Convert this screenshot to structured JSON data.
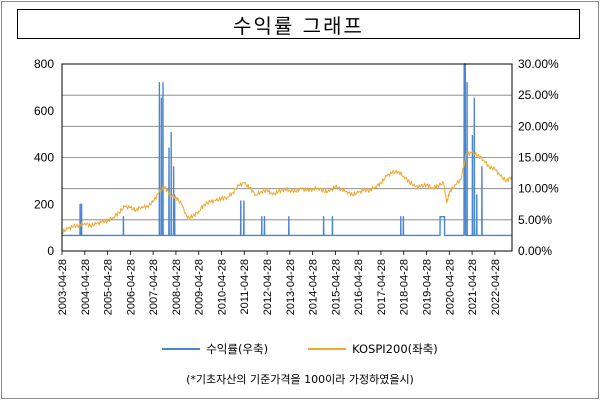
{
  "title": "수익률 그래프",
  "footnote": "(*기초자산의 기준가격을 100이라 가정하였을시)",
  "colors": {
    "kospi": "#F0A830",
    "returns": "#4A86D0",
    "grid": "#7F7F7F",
    "axis": "#000000"
  },
  "chart_data": {
    "type": "line",
    "title": "수익률 그래프",
    "left_axis": {
      "min": 0,
      "max": 800,
      "ticks": [
        "0",
        "200",
        "400",
        "600",
        "800"
      ],
      "series": "KOSPI200(좌축)"
    },
    "right_axis": {
      "min": 0,
      "max": 30,
      "ticks": [
        "0.00%",
        "5.00%",
        "10.00%",
        "15.00%",
        "20.00%",
        "25.00%",
        "30.00%"
      ],
      "series": "수익률(우축)"
    },
    "x_ticks": [
      "2003-04-28",
      "2004-04-28",
      "2005-04-28",
      "2006-04-28",
      "2007-04-28",
      "2008-04-28",
      "2009-04-28",
      "2010-04-28",
      "2011-04-28",
      "2012-04-28",
      "2013-04-28",
      "2014-04-28",
      "2015-04-28",
      "2016-04-28",
      "2017-04-28",
      "2018-04-28",
      "2019-04-28",
      "2020-04-28",
      "2021-04-28",
      "2022-04-28"
    ],
    "grid": true,
    "legend_position": "bottom",
    "series": [
      {
        "name": "KOSPI200(좌축)",
        "axis": "left",
        "values": [
          [
            "2003-04-28",
            80
          ],
          [
            "2003-07-28",
            95
          ],
          [
            "2003-10-28",
            105
          ],
          [
            "2004-01-28",
            110
          ],
          [
            "2004-04-28",
            120
          ],
          [
            "2004-07-28",
            108
          ],
          [
            "2004-10-28",
            115
          ],
          [
            "2005-01-28",
            125
          ],
          [
            "2005-04-28",
            128
          ],
          [
            "2005-07-28",
            145
          ],
          [
            "2005-10-28",
            165
          ],
          [
            "2006-01-28",
            190
          ],
          [
            "2006-04-28",
            185
          ],
          [
            "2006-07-28",
            175
          ],
          [
            "2006-10-28",
            190
          ],
          [
            "2007-01-28",
            190
          ],
          [
            "2007-04-28",
            210
          ],
          [
            "2007-07-28",
            250
          ],
          [
            "2007-10-28",
            275
          ],
          [
            "2008-01-28",
            240
          ],
          [
            "2008-04-28",
            230
          ],
          [
            "2008-07-28",
            200
          ],
          [
            "2008-10-28",
            140
          ],
          [
            "2009-01-28",
            150
          ],
          [
            "2009-04-28",
            170
          ],
          [
            "2009-07-28",
            200
          ],
          [
            "2009-10-28",
            210
          ],
          [
            "2010-01-28",
            215
          ],
          [
            "2010-04-28",
            225
          ],
          [
            "2010-07-28",
            230
          ],
          [
            "2010-10-28",
            250
          ],
          [
            "2011-01-28",
            280
          ],
          [
            "2011-04-28",
            290
          ],
          [
            "2011-07-28",
            270
          ],
          [
            "2011-10-28",
            240
          ],
          [
            "2012-01-28",
            255
          ],
          [
            "2012-04-28",
            260
          ],
          [
            "2012-07-28",
            240
          ],
          [
            "2012-10-28",
            255
          ],
          [
            "2013-01-28",
            265
          ],
          [
            "2013-04-28",
            260
          ],
          [
            "2013-07-28",
            255
          ],
          [
            "2013-10-28",
            265
          ],
          [
            "2014-01-28",
            260
          ],
          [
            "2014-04-28",
            265
          ],
          [
            "2014-07-28",
            270
          ],
          [
            "2014-10-28",
            255
          ],
          [
            "2015-01-28",
            255
          ],
          [
            "2015-04-28",
            275
          ],
          [
            "2015-07-28",
            265
          ],
          [
            "2015-10-28",
            255
          ],
          [
            "2016-01-28",
            240
          ],
          [
            "2016-04-28",
            250
          ],
          [
            "2016-07-28",
            260
          ],
          [
            "2016-10-28",
            260
          ],
          [
            "2017-01-28",
            275
          ],
          [
            "2017-04-28",
            290
          ],
          [
            "2017-07-28",
            320
          ],
          [
            "2017-10-28",
            335
          ],
          [
            "2018-01-28",
            340
          ],
          [
            "2018-04-28",
            320
          ],
          [
            "2018-07-28",
            295
          ],
          [
            "2018-10-28",
            275
          ],
          [
            "2019-01-28",
            275
          ],
          [
            "2019-04-28",
            285
          ],
          [
            "2019-07-28",
            270
          ],
          [
            "2019-10-28",
            280
          ],
          [
            "2020-01-28",
            290
          ],
          [
            "2020-03-20",
            205
          ],
          [
            "2020-04-28",
            250
          ],
          [
            "2020-07-28",
            285
          ],
          [
            "2020-10-28",
            305
          ],
          [
            "2021-01-28",
            415
          ],
          [
            "2021-04-28",
            420
          ],
          [
            "2021-07-28",
            410
          ],
          [
            "2021-10-28",
            390
          ],
          [
            "2022-01-28",
            360
          ],
          [
            "2022-04-28",
            350
          ],
          [
            "2022-07-28",
            320
          ],
          [
            "2022-10-28",
            300
          ],
          [
            "2023-01-28",
            320
          ]
        ]
      },
      {
        "name": "수익률(우축)",
        "axis": "right",
        "values": [
          [
            "2003-04-28",
            2.5
          ],
          [
            "2004-02-10",
            2.5
          ],
          [
            "2004-02-12",
            7.5
          ],
          [
            "2004-02-14",
            2.5
          ],
          [
            "2004-03-05",
            2.5
          ],
          [
            "2004-03-07",
            7.5
          ],
          [
            "2004-03-09",
            2.5
          ],
          [
            "2006-01-05",
            2.5
          ],
          [
            "2006-01-07",
            5.5
          ],
          [
            "2006-01-09",
            2.5
          ],
          [
            "2007-08-05",
            2.5
          ],
          [
            "2007-08-07",
            27
          ],
          [
            "2007-08-09",
            2.5
          ],
          [
            "2007-09-05",
            2.5
          ],
          [
            "2007-09-07",
            24.5
          ],
          [
            "2007-09-09",
            2.5
          ],
          [
            "2007-10-01",
            2.5
          ],
          [
            "2007-10-03",
            27
          ],
          [
            "2007-10-05",
            2.5
          ],
          [
            "2008-01-05",
            2.5
          ],
          [
            "2008-01-07",
            16.5
          ],
          [
            "2008-01-10",
            2.5
          ],
          [
            "2008-02-10",
            2.5
          ],
          [
            "2008-02-12",
            19
          ],
          [
            "2008-02-14",
            2.5
          ],
          [
            "2008-03-20",
            2.5
          ],
          [
            "2008-03-22",
            13.5
          ],
          [
            "2008-03-24",
            2.5
          ],
          [
            "2008-04-05",
            2.5
          ],
          [
            "2008-04-07",
            9
          ],
          [
            "2008-04-09",
            2.5
          ],
          [
            "2011-03-01",
            2.5
          ],
          [
            "2011-03-03",
            8
          ],
          [
            "2011-03-05",
            2.5
          ],
          [
            "2011-04-20",
            2.5
          ],
          [
            "2011-04-22",
            8
          ],
          [
            "2011-04-24",
            2.5
          ],
          [
            "2012-02-01",
            2.5
          ],
          [
            "2012-02-03",
            5.5
          ],
          [
            "2012-02-05",
            2.5
          ],
          [
            "2012-03-15",
            2.5
          ],
          [
            "2012-03-17",
            5.5
          ],
          [
            "2012-03-19",
            2.5
          ],
          [
            "2013-04-10",
            2.5
          ],
          [
            "2013-04-12",
            5.5
          ],
          [
            "2013-04-14",
            2.5
          ],
          [
            "2014-10-20",
            2.5
          ],
          [
            "2014-10-22",
            5.5
          ],
          [
            "2014-10-24",
            2.5
          ],
          [
            "2015-03-10",
            2.5
          ],
          [
            "2015-03-12",
            5.5
          ],
          [
            "2015-03-14",
            2.5
          ],
          [
            "2018-03-10",
            2.5
          ],
          [
            "2018-03-12",
            5.5
          ],
          [
            "2018-03-14",
            2.5
          ],
          [
            "2018-04-20",
            2.5
          ],
          [
            "2018-04-22",
            5.5
          ],
          [
            "2018-04-24",
            2.5
          ],
          [
            "2019-12-01",
            2.5
          ],
          [
            "2019-12-03",
            5.5
          ],
          [
            "2020-02-10",
            5.5
          ],
          [
            "2020-02-12",
            2.5
          ],
          [
            "2020-12-20",
            2.5
          ],
          [
            "2020-12-22",
            30
          ],
          [
            "2021-01-10",
            30
          ],
          [
            "2021-01-12",
            2.5
          ],
          [
            "2021-02-05",
            2.5
          ],
          [
            "2021-02-07",
            27
          ],
          [
            "2021-02-09",
            2.5
          ],
          [
            "2021-05-01",
            2.5
          ],
          [
            "2021-05-03",
            18.5
          ],
          [
            "2021-05-05",
            2.5
          ],
          [
            "2021-06-01",
            2.5
          ],
          [
            "2021-06-03",
            24.5
          ],
          [
            "2021-06-05",
            2.5
          ],
          [
            "2021-07-10",
            2.5
          ],
          [
            "2021-07-12",
            9
          ],
          [
            "2021-07-14",
            2.5
          ],
          [
            "2021-10-01",
            2.5
          ],
          [
            "2021-10-03",
            13.5
          ],
          [
            "2021-10-05",
            2.5
          ],
          [
            "2023-01-28",
            2.5
          ]
        ]
      }
    ]
  }
}
